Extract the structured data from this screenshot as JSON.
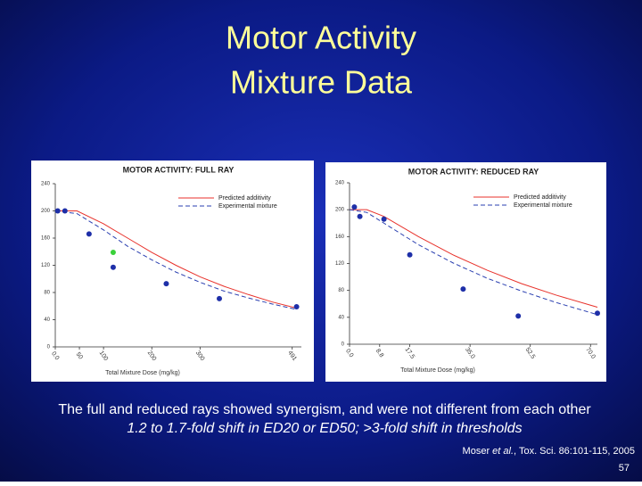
{
  "slide": {
    "title_lines": [
      "Motor Activity",
      "Mixture Data"
    ],
    "caption_lines": [
      "The full and reduced rays showed synergism, and were not different from each other",
      "1.2 to 1.7-fold shift in ED20 or ED50; >3-fold shift in thresholds"
    ],
    "citation": [
      "Moser ",
      "et al.",
      ", Tox. Sci. 86:101-115, 2005"
    ],
    "page_number": "57"
  },
  "chart_data": [
    {
      "type": "line",
      "title": "MOTOR ACTIVITY: FULL RAY",
      "x_label": "Total Mixture Dose (mg/kg)",
      "xlim": [
        0,
        510
      ],
      "xticks": [
        {
          "value": 0,
          "label": "0.0"
        },
        50,
        100,
        200,
        300,
        491
      ],
      "ylim": [
        0,
        240
      ],
      "yticks": [
        0,
        40,
        80,
        120,
        160,
        200,
        240
      ],
      "series": [
        {
          "name": "Predicted additivity",
          "color": "#e8322b",
          "dashed": false,
          "x": [
            0,
            45,
            100,
            150,
            200,
            250,
            300,
            350,
            400,
            450,
            500
          ],
          "values": [
            200,
            200,
            181,
            160,
            139,
            120,
            103,
            89,
            77,
            66,
            57
          ]
        },
        {
          "name": "Experimental mixture",
          "color": "#2a3fb0",
          "dashed": true,
          "x": [
            0,
            45,
            100,
            150,
            200,
            250,
            300,
            350,
            400,
            450,
            500
          ],
          "values": [
            200,
            196,
            172,
            148,
            128,
            110,
            95,
            82,
            72,
            63,
            55
          ]
        },
        {
          "marker": true,
          "color": "#1e2fa8",
          "x": [
            5,
            20,
            70,
            120,
            230,
            340,
            500
          ],
          "values": [
            200,
            200,
            166,
            117,
            93,
            71,
            59
          ]
        },
        {
          "marker": true,
          "color": "#3ad13a",
          "x": [
            120
          ],
          "values": [
            139
          ]
        }
      ]
    },
    {
      "type": "line",
      "title": "MOTOR ACTIVITY: REDUCED RAY",
      "x_label": "Total Mixture Dose (mg/kg)",
      "xlim": [
        0,
        72
      ],
      "xticks": [
        {
          "value": 0,
          "label": "0.0"
        },
        {
          "value": 8.75,
          "label": "8.8"
        },
        17.5,
        {
          "value": 35,
          "label": "35.0"
        },
        52.5,
        {
          "value": 70,
          "label": "70.0"
        }
      ],
      "ylim": [
        0,
        240
      ],
      "yticks": [
        0,
        40,
        80,
        120,
        160,
        200,
        240
      ],
      "series": [
        {
          "name": "Predicted additivity",
          "color": "#e8322b",
          "dashed": false,
          "x": [
            0,
            5,
            10,
            20,
            30,
            40,
            50,
            60,
            70,
            72
          ],
          "values": [
            200,
            200,
            190,
            160,
            133,
            110,
            90,
            73,
            58,
            55
          ]
        },
        {
          "name": "Experimental mixture",
          "color": "#2a3fb0",
          "dashed": true,
          "x": [
            0,
            5,
            10,
            20,
            30,
            40,
            50,
            60,
            70,
            72
          ],
          "values": [
            200,
            196,
            180,
            148,
            121,
            98,
            79,
            62,
            47,
            44
          ]
        },
        {
          "marker": true,
          "color": "#1e2fa8",
          "x": [
            1.4,
            3,
            10,
            17.5,
            33,
            49,
            72
          ],
          "values": [
            204,
            190,
            186,
            133,
            82,
            42,
            46
          ]
        }
      ]
    }
  ]
}
